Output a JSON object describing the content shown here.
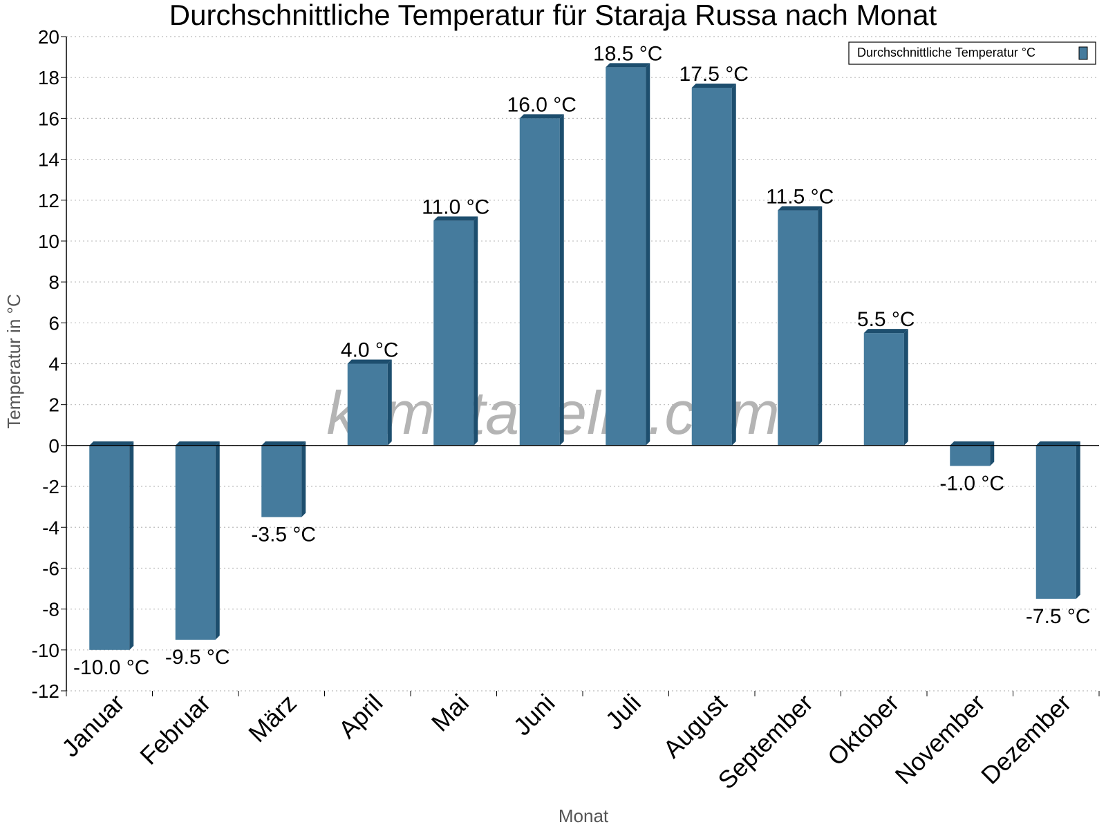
{
  "chart_data": {
    "type": "bar",
    "title": "Durchschnittliche Temperatur für Staraja Russa nach Monat",
    "xlabel": "Monat",
    "ylabel": "Temperatur in °C",
    "ylim": [
      -12,
      20
    ],
    "yticks": [
      20,
      18,
      16,
      14,
      12,
      10,
      8,
      6,
      4,
      2,
      0,
      -2,
      -4,
      -6,
      -8,
      -10,
      -12
    ],
    "grid": true,
    "legend_position": "top-right",
    "categories": [
      "Januar",
      "Februar",
      "März",
      "April",
      "Mai",
      "Juni",
      "Juli",
      "August",
      "September",
      "Oktober",
      "November",
      "Dezember"
    ],
    "series": [
      {
        "name": "Durchschnittliche Temperatur °C",
        "values": [
          -10.0,
          -9.5,
          -3.5,
          4.0,
          11.0,
          16.0,
          18.5,
          17.5,
          11.5,
          5.5,
          -1.0,
          -7.5
        ],
        "labels": [
          "-10.0 °C",
          "-9.5 °C",
          "-3.5 °C",
          "4.0 °C",
          "11.0 °C",
          "16.0 °C",
          "18.5 °C",
          "17.5 °C",
          "11.5 °C",
          "5.5 °C",
          "-1.0 °C",
          "-7.5 °C"
        ]
      }
    ],
    "colors": {
      "bar": "#457b9d",
      "bar_shade": "#1d4e6e",
      "grid": "#bbbbbb"
    },
    "watermark": "klimatabelle.com"
  }
}
